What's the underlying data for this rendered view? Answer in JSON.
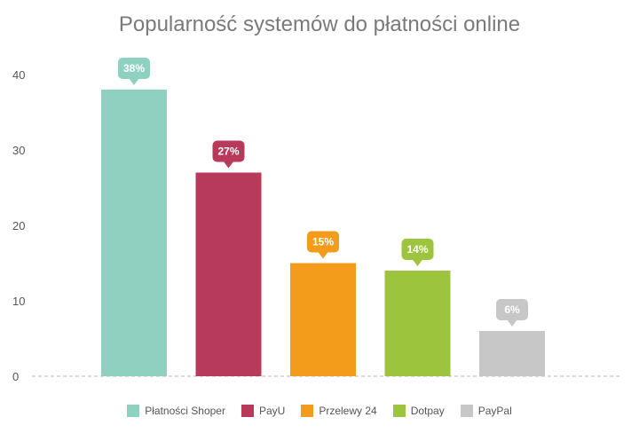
{
  "chart_data": {
    "type": "bar",
    "title": "Popularność systemów do płatności online",
    "categories": [
      "Płatności Shoper",
      "PayU",
      "Przelewy 24",
      "Dotpay",
      "PayPal"
    ],
    "values": [
      38,
      27,
      15,
      14,
      6
    ],
    "data_labels": [
      "38%",
      "27%",
      "15%",
      "14%",
      "6%"
    ],
    "colors": [
      "#8fd1c0",
      "#b83a5b",
      "#f39c1c",
      "#9cc43c",
      "#c7c7c7"
    ],
    "y_ticks": [
      "0",
      "10",
      "20",
      "30",
      "40"
    ],
    "ylim": [
      0,
      40
    ],
    "grid": false,
    "legend_position": "bottom"
  }
}
